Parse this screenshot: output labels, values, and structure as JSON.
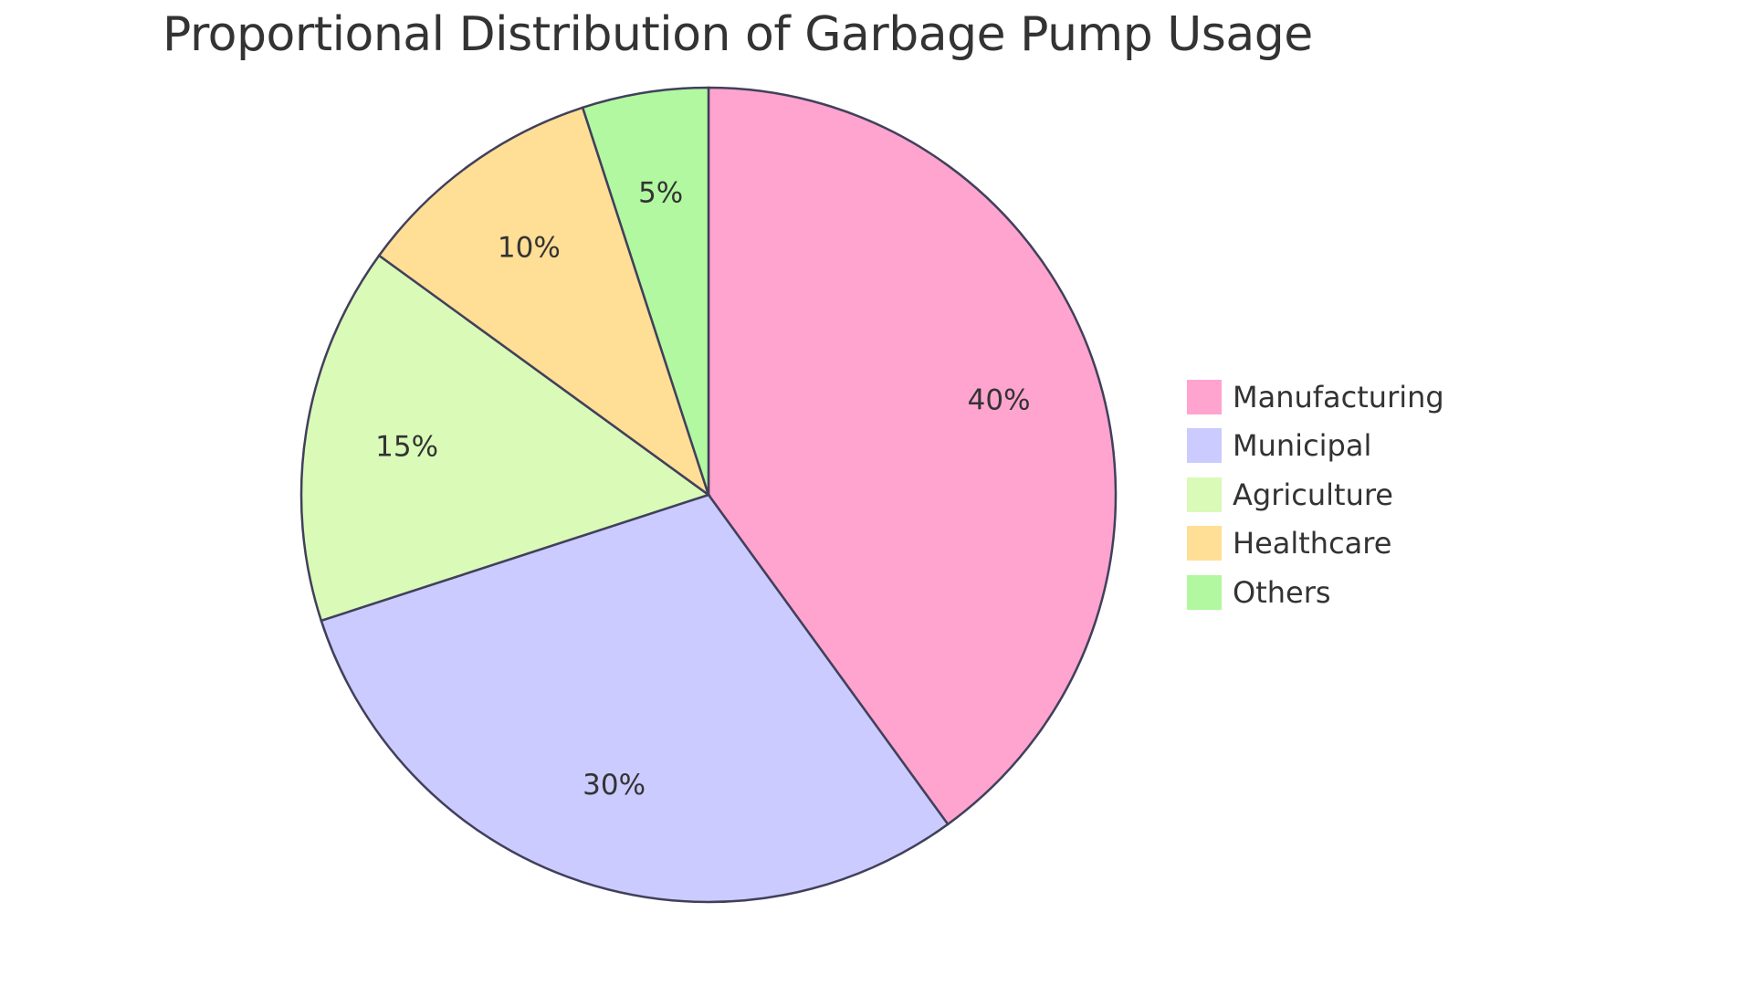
{
  "chart_data": {
    "type": "pie",
    "title": "Proportional Distribution of Garbage Pump Usage",
    "legend_position": "right",
    "slices": [
      {
        "name": "Manufacturing",
        "value": 40,
        "label": "40%",
        "color": "#ffa3cf"
      },
      {
        "name": "Municipal",
        "value": 30,
        "label": "30%",
        "color": "#cbcbff"
      },
      {
        "name": "Agriculture",
        "value": 15,
        "label": "15%",
        "color": "#dafab8"
      },
      {
        "name": "Healthcare",
        "value": 10,
        "label": "10%",
        "color": "#ffde96"
      },
      {
        "name": "Others",
        "value": 5,
        "label": "5%",
        "color": "#b2f8a0"
      }
    ],
    "stroke_color": "#41405b"
  }
}
